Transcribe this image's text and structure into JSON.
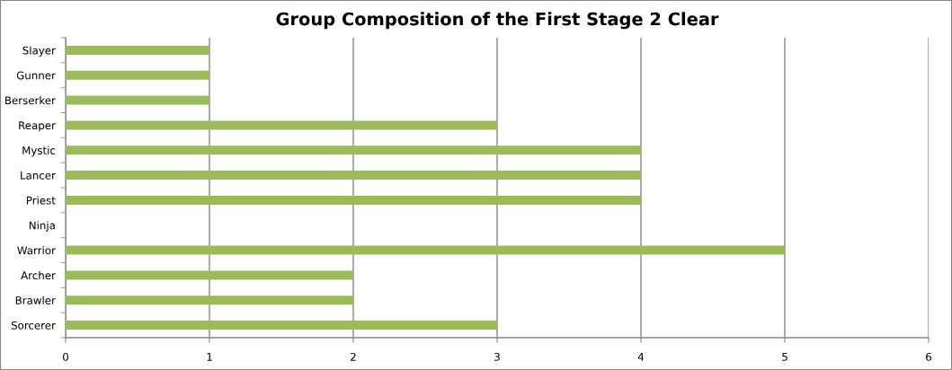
{
  "chart_data": {
    "type": "bar",
    "orientation": "horizontal",
    "title": "Group Composition of the First Stage 2 Clear",
    "categories": [
      "Slayer",
      "Gunner",
      "Berserker",
      "Reaper",
      "Mystic",
      "Lancer",
      "Priest",
      "Ninja",
      "Warrior",
      "Archer",
      "Brawler",
      "Sorcerer"
    ],
    "values": [
      1,
      1,
      1,
      3,
      4,
      4,
      4,
      0,
      5,
      2,
      2,
      3
    ],
    "color": "#9bbb59",
    "xlim": [
      0,
      6
    ],
    "xticks": [
      0,
      1,
      2,
      3,
      4,
      5,
      6
    ],
    "grid": "x",
    "legend": false
  }
}
